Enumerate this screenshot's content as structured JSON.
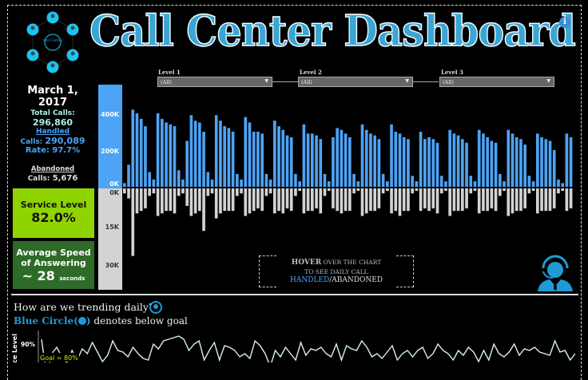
{
  "header": {
    "title": "Call Center Dashboard",
    "info_icon": "info-icon",
    "logo_label": "Call Center"
  },
  "summary": {
    "date": "March 1, 2017",
    "total_label": "Total  Calls:",
    "total_value": "296,860",
    "handled_label": "Handled",
    "handled_calls_label": "Calls:",
    "handled_calls_value": "290,089",
    "rate_label": "Rate:",
    "rate_value": "97.7%",
    "abandoned_label": "Abandoned",
    "abandoned_calls_label": "Calls:",
    "abandoned_calls_value": "5,676"
  },
  "kpis": {
    "service_level_label": "Service Level",
    "service_level_value": "82.0%",
    "asa_label_1": "Average Speed",
    "asa_label_2": "of Answering",
    "asa_prefix": "~",
    "asa_value": "28",
    "asa_unit": "seconds"
  },
  "filters": [
    {
      "label": "Level 1",
      "value": "(All)"
    },
    {
      "label": "Level 2",
      "value": "(All)"
    },
    {
      "label": "Level 3",
      "value": "(All)"
    }
  ],
  "hover_note": {
    "line1_bold": "HOVER",
    "line1_rest": " OVER THE CHART",
    "line2": "TO SEE  DAILY CALL",
    "handled": "HANDLED",
    "sep": "/",
    "abandoned": "ABANDONED"
  },
  "colors": {
    "handled": "#4da3f5",
    "abandoned": "#d3d3d3",
    "service_level_bg": "#8fd400",
    "asa_bg": "#2e6b28",
    "accent": "#1e9ad6",
    "goal": "#e5e500"
  },
  "trend": {
    "question": "How are we trending daily?",
    "legend_bold": "Blue Circle(",
    "legend_close": ")",
    "legend_rest": " denotes below goal",
    "ylabel": "Service Level",
    "tick_90": "90%",
    "goal_label": "Goal = 80%"
  },
  "chart_data": [
    {
      "type": "bar",
      "name_handled_axis": [
        "400K",
        "200K",
        "0K"
      ],
      "name_abandoned_axis": [
        "0K",
        "15K",
        "30K"
      ],
      "handled": [
        20,
        120,
        420,
        400,
        370,
        330,
        80,
        40,
        400,
        370,
        350,
        340,
        330,
        90,
        40,
        250,
        390,
        360,
        350,
        300,
        80,
        40,
        390,
        360,
        330,
        320,
        300,
        70,
        40,
        380,
        350,
        300,
        300,
        290,
        70,
        40,
        360,
        330,
        310,
        280,
        270,
        70,
        30,
        340,
        290,
        290,
        280,
        260,
        70,
        30,
        270,
        320,
        310,
        290,
        270,
        70,
        30,
        340,
        310,
        290,
        280,
        260,
        70,
        30,
        340,
        300,
        290,
        270,
        260,
        60,
        30,
        300,
        260,
        270,
        260,
        240,
        60,
        30,
        310,
        290,
        280,
        260,
        240,
        60,
        30,
        310,
        290,
        270,
        250,
        240,
        70,
        30,
        310,
        290,
        270,
        260,
        230,
        60,
        30,
        290,
        270,
        260,
        250,
        200,
        40,
        20,
        290,
        270
      ],
      "abandoned": [
        2,
        4,
        27,
        10,
        9,
        8,
        3,
        2,
        11,
        10,
        9,
        9,
        10,
        3,
        2,
        7,
        11,
        10,
        9,
        17,
        3,
        2,
        12,
        10,
        9,
        9,
        9,
        3,
        2,
        11,
        10,
        9,
        8,
        9,
        3,
        2,
        10,
        9,
        10,
        8,
        9,
        3,
        1,
        10,
        9,
        9,
        8,
        10,
        3,
        1,
        8,
        9,
        10,
        9,
        9,
        2,
        1,
        11,
        10,
        9,
        9,
        8,
        2,
        1,
        10,
        9,
        11,
        9,
        9,
        2,
        1,
        9,
        8,
        9,
        8,
        10,
        2,
        1,
        11,
        9,
        9,
        9,
        8,
        2,
        1,
        10,
        9,
        9,
        8,
        9,
        3,
        1,
        11,
        10,
        9,
        9,
        8,
        2,
        1,
        10,
        9,
        9,
        9,
        8,
        2,
        1,
        9,
        8
      ],
      "xlabel": "",
      "ylabel": ""
    },
    {
      "type": "line",
      "ylabel": "Service Level",
      "goal": 80,
      "values": [
        93,
        70,
        84,
        88,
        82,
        78,
        86,
        80,
        87,
        84,
        91,
        85,
        79,
        83,
        92,
        86,
        85,
        82,
        88,
        84,
        81,
        80,
        90,
        87,
        92,
        93,
        94,
        95,
        93,
        86,
        90,
        92,
        80,
        86,
        91,
        80,
        89,
        88,
        86,
        82,
        84,
        81,
        92,
        89,
        84,
        76,
        86,
        82,
        88,
        84,
        80,
        91,
        83,
        87,
        86,
        88,
        84,
        82,
        90,
        80,
        89,
        87,
        86,
        92,
        88,
        82,
        84,
        81,
        85,
        89,
        80,
        84,
        86,
        82,
        86,
        88,
        81,
        84,
        90,
        86,
        84,
        80,
        86,
        83,
        88,
        85,
        79,
        86,
        80,
        90,
        84,
        82,
        85,
        90,
        83,
        87,
        86,
        88,
        85,
        84,
        83,
        92,
        85,
        86,
        80,
        84
      ],
      "ylim": [
        70,
        95
      ]
    }
  ]
}
